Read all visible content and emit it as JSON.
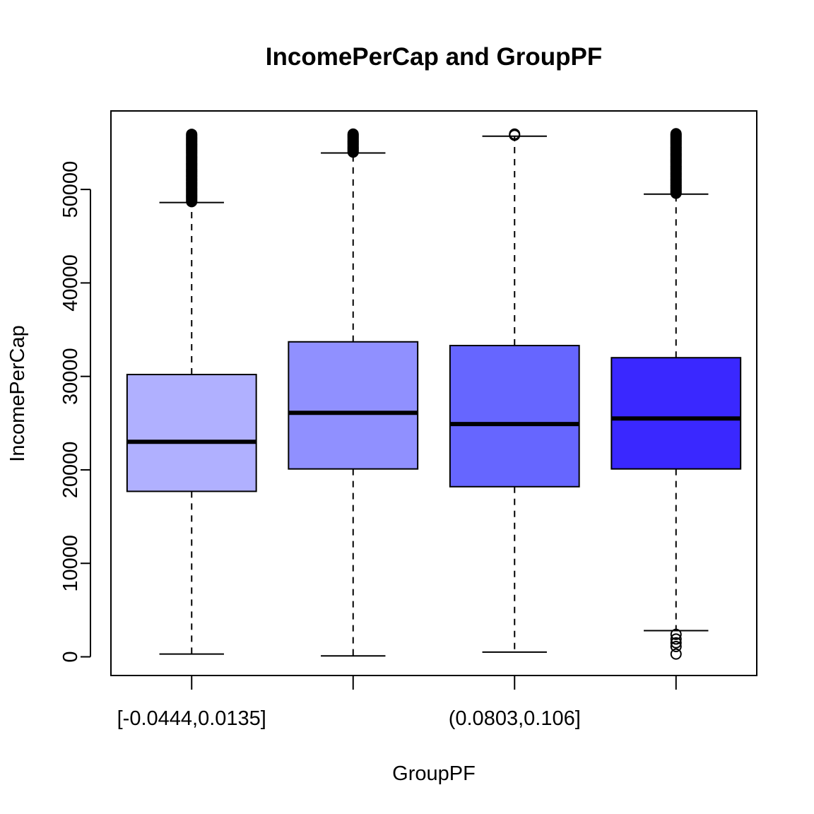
{
  "chart_data": {
    "type": "box",
    "title": "IncomePerCap and GroupPF",
    "xlabel": "GroupPF",
    "ylabel": "IncomePerCap",
    "categories": [
      "[-0.0444,0.0135]",
      "",
      "(0.0803,0.106]",
      ""
    ],
    "ylim": [
      -2000,
      58400
    ],
    "yticks": [
      0,
      10000,
      20000,
      30000,
      40000,
      50000
    ],
    "ytick_labels": [
      "0",
      "10000",
      "20000",
      "30000",
      "40000",
      "50000"
    ],
    "grid": false,
    "boxes": [
      {
        "whisker_low": 300,
        "q1": 17700,
        "median": 23000,
        "q3": 30200,
        "whisker_high": 48600,
        "outlier_range": [
          48600,
          56000
        ],
        "outliers_low": [],
        "color": "#B0B0FF"
      },
      {
        "whisker_low": 100,
        "q1": 20100,
        "median": 26100,
        "q3": 33700,
        "whisker_high": 53900,
        "outlier_range": [
          53900,
          56000
        ],
        "outliers_low": [],
        "color": "#9090FF"
      },
      {
        "whisker_low": 500,
        "q1": 18200,
        "median": 24900,
        "q3": 33300,
        "whisker_high": 55700,
        "outlier_range": [
          55700,
          56000
        ],
        "outliers_low": [],
        "color": "#6666FF"
      },
      {
        "whisker_low": 2800,
        "q1": 20100,
        "median": 25500,
        "q3": 32000,
        "whisker_high": 49500,
        "outlier_range": [
          49500,
          56000
        ],
        "outliers_low": [
          2400,
          1900,
          1500,
          1100,
          300
        ],
        "color": "#3A28FF"
      }
    ]
  }
}
